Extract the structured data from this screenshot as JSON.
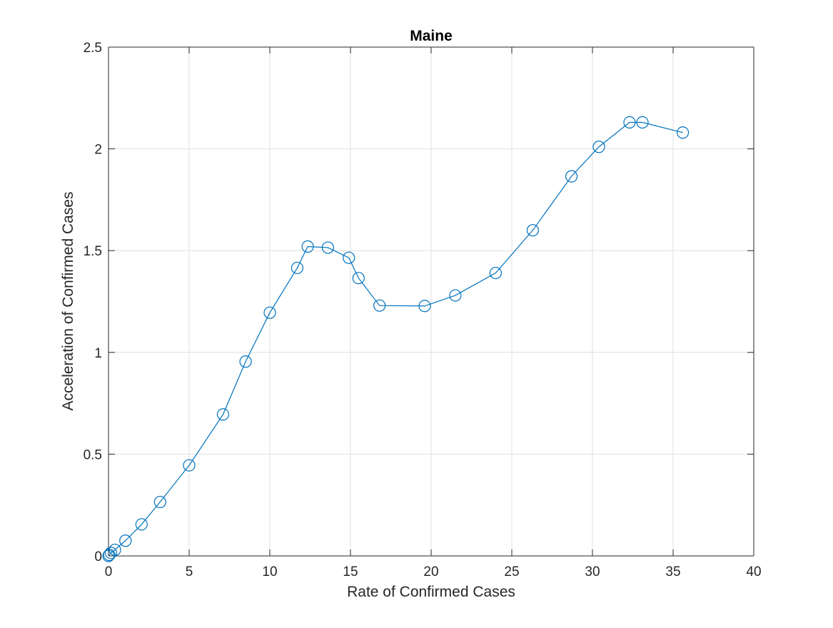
{
  "colors": {
    "series": "#0072BD",
    "grid": "#dfdfdf",
    "axis": "#262626",
    "background": "#ffffff"
  },
  "chart_data": {
    "type": "line",
    "title": "Maine",
    "xlabel": "Rate of Confirmed Cases",
    "ylabel": "Acceleration of Confirmed Cases",
    "xlim": [
      0,
      40
    ],
    "ylim": [
      0,
      2.5
    ],
    "xticks": [
      0,
      5,
      10,
      15,
      20,
      25,
      30,
      35,
      40
    ],
    "yticks": [
      0,
      0.5,
      1,
      1.5,
      2,
      2.5
    ],
    "xtick_labels": [
      "0",
      "5",
      "10",
      "15",
      "20",
      "25",
      "30",
      "35",
      "40"
    ],
    "ytick_labels": [
      "0",
      "0.5",
      "1",
      "1.5",
      "2",
      "2.5"
    ],
    "grid": true,
    "marker": "circle",
    "series": [
      {
        "x": [
          0.0,
          0.05,
          0.15,
          0.4,
          1.05,
          2.05,
          3.2,
          5.0,
          7.1,
          8.5,
          10.0,
          11.7,
          12.35,
          13.6,
          14.9,
          15.5,
          16.8,
          19.6,
          21.5,
          24.0,
          26.3,
          28.7,
          30.4,
          32.3,
          33.1,
          35.6
        ],
        "y": [
          0.0,
          0.005,
          0.015,
          0.03,
          0.075,
          0.155,
          0.265,
          0.445,
          0.695,
          0.955,
          1.195,
          1.415,
          1.52,
          1.515,
          1.465,
          1.365,
          1.23,
          1.228,
          1.28,
          1.39,
          1.6,
          1.865,
          2.01,
          2.13,
          2.13,
          2.08
        ]
      }
    ]
  }
}
